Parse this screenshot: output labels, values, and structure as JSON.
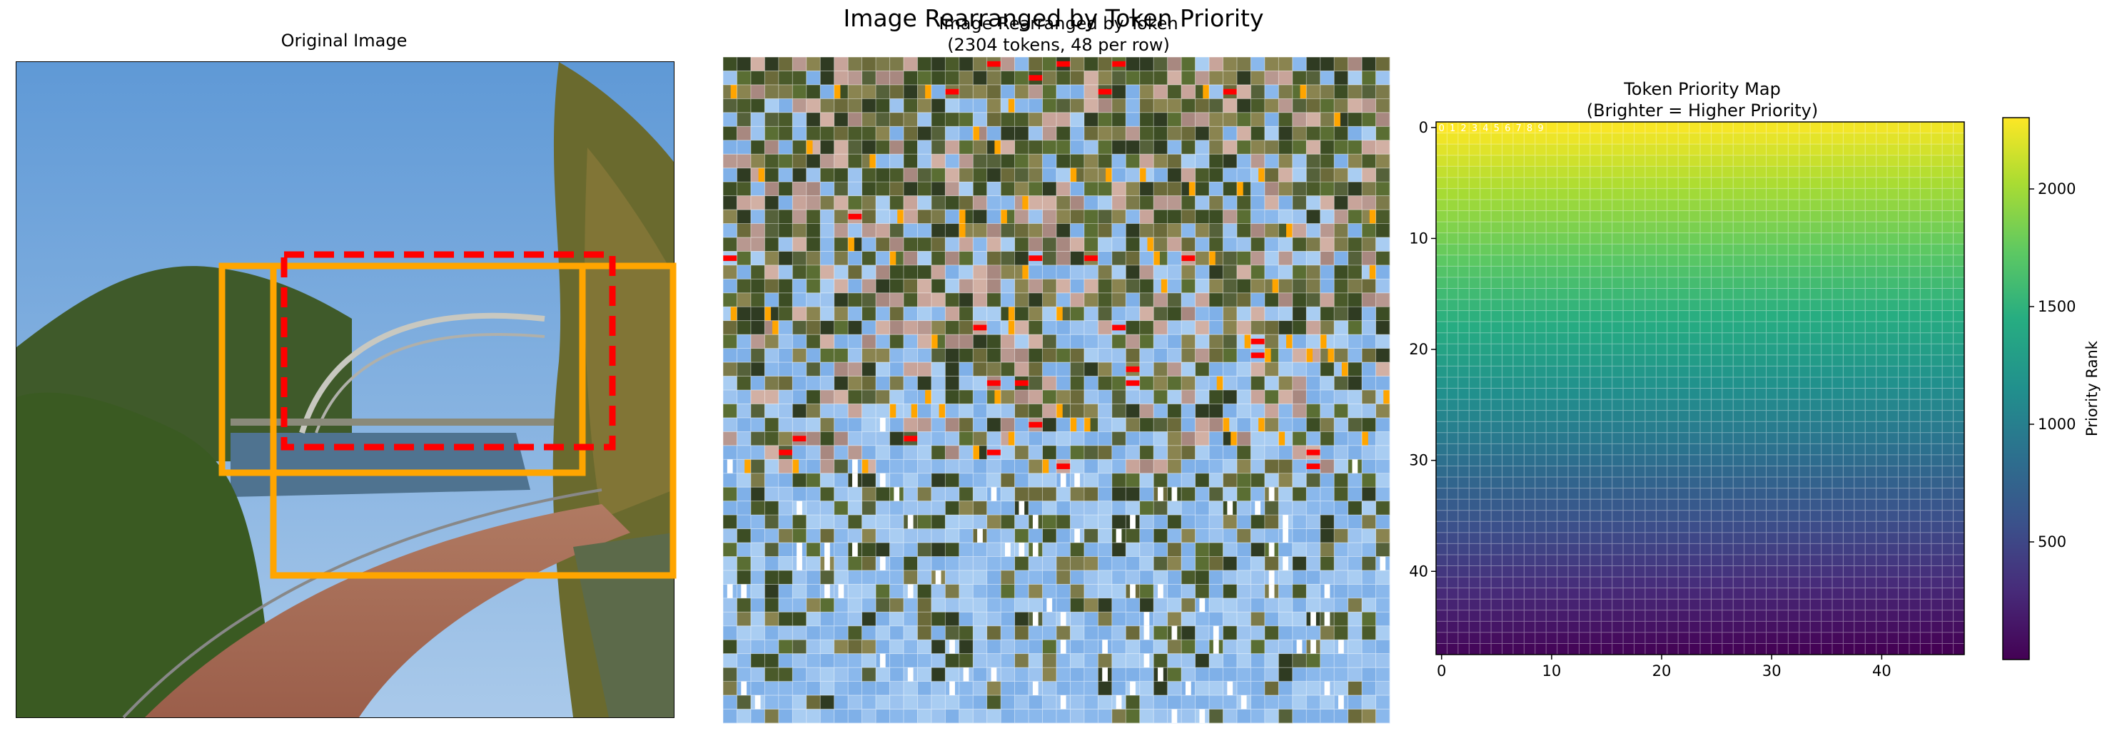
{
  "suptitle": "Image Rearranged by Token Priority",
  "panels": {
    "original": {
      "title": "Original Image"
    },
    "rearranged": {
      "title_line1": "Image Rearranged by Token",
      "title_line2": "(2304 tokens, 48 per row)"
    },
    "priority_map": {
      "title_line1": "Token Priority Map",
      "title_line2": "(Brighter = Higher Priority)"
    }
  },
  "chart_data": [
    {
      "type": "image",
      "title": "Original Image",
      "annotations": [
        {
          "shape": "rectangle",
          "color": "#ffa500",
          "style": "solid"
        },
        {
          "shape": "rectangle",
          "color": "#ffa500",
          "style": "solid"
        },
        {
          "shape": "rectangle",
          "color": "#ff0000",
          "style": "dashed"
        }
      ]
    },
    {
      "type": "image",
      "title": "Image Rearranged by Token (2304 tokens, 48 per row)",
      "tokens": 2304,
      "per_row": 48,
      "grid": true
    },
    {
      "type": "heatmap",
      "title": "Token Priority Map (Brighter = Higher Priority)",
      "rows": 48,
      "cols": 48,
      "colormap": "viridis",
      "xticks": [
        0,
        10,
        20,
        30,
        40
      ],
      "yticks": [
        0,
        10,
        20,
        30,
        40
      ],
      "xlim": [
        -0.5,
        47.5
      ],
      "ylim": [
        47.5,
        -0.5
      ],
      "value_range": [
        0,
        2303
      ],
      "colorbar": {
        "label": "Priority Rank",
        "ticks": [
          500,
          1000,
          1500,
          2000
        ]
      },
      "cell_labels": [
        "0",
        "1",
        "2",
        "3",
        "4",
        "5",
        "6",
        "7",
        "8",
        "9"
      ],
      "colors": {
        "dark": "#440154",
        "mid": "#21918c",
        "bright": "#fde725"
      }
    }
  ]
}
